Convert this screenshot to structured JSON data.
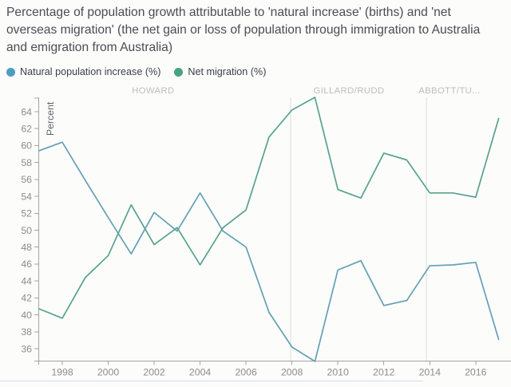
{
  "title": "Percentage of population growth attributable to 'natural increase' (births) and 'net overseas migration' (the net gain or loss of population through immigration to Australia and emigration from Australia)",
  "legend": [
    {
      "label": "Natural population increase (%)",
      "color": "#4d9dc2"
    },
    {
      "label": "Net migration (%)",
      "color": "#46a383"
    }
  ],
  "chart_data": {
    "type": "line",
    "title": "Percentage of population growth attributable to 'natural increase' (births) and 'net overseas migration'",
    "xlabel": "",
    "ylabel": "Percent",
    "xlim": [
      1997,
      2017
    ],
    "ylim": [
      34.4,
      65.8
    ],
    "grid": "era-dividers-only",
    "legend_position": "top-left",
    "x": [
      1997,
      1998,
      1999,
      2000,
      2001,
      2002,
      2003,
      2004,
      2005,
      2006,
      2007,
      2008,
      2009,
      2010,
      2011,
      2012,
      2013,
      2014,
      2015,
      2016,
      2017
    ],
    "series": [
      {
        "id": "natural_increase",
        "name": "Natural population increase (%)",
        "color": "#64a0b4",
        "values": [
          59.4,
          60.4,
          55.9,
          51.5,
          47.2,
          52.1,
          49.9,
          54.4,
          49.9,
          48.0,
          40.3,
          36.2,
          34.5,
          45.3,
          46.4,
          41.1,
          41.7,
          45.8,
          45.9,
          46.2,
          37.1
        ]
      },
      {
        "id": "net_migration",
        "name": "Net migration (%)",
        "color": "#57a28e",
        "values": [
          40.7,
          39.6,
          44.4,
          47.0,
          53.0,
          48.3,
          50.3,
          45.9,
          50.3,
          52.4,
          61.0,
          64.2,
          65.7,
          54.8,
          53.8,
          59.1,
          58.3,
          54.4,
          54.4,
          53.9,
          63.2
        ]
      }
    ],
    "x_ticks": [
      1998,
      2000,
      2002,
      2004,
      2006,
      2008,
      2010,
      2012,
      2014,
      2016
    ],
    "y_ticks": [
      36,
      38,
      40,
      42,
      44,
      46,
      48,
      50,
      52,
      54,
      56,
      58,
      60,
      62,
      64
    ],
    "era_dividers": [
      2007.95,
      2013.85
    ],
    "annotations": [
      {
        "label": "HOWARD",
        "x": 2001.96
      },
      {
        "label": "GILLARD/RUDD",
        "x": 2010.48
      },
      {
        "label": "ABBOTT/TU...",
        "x": 2014.86
      }
    ]
  }
}
